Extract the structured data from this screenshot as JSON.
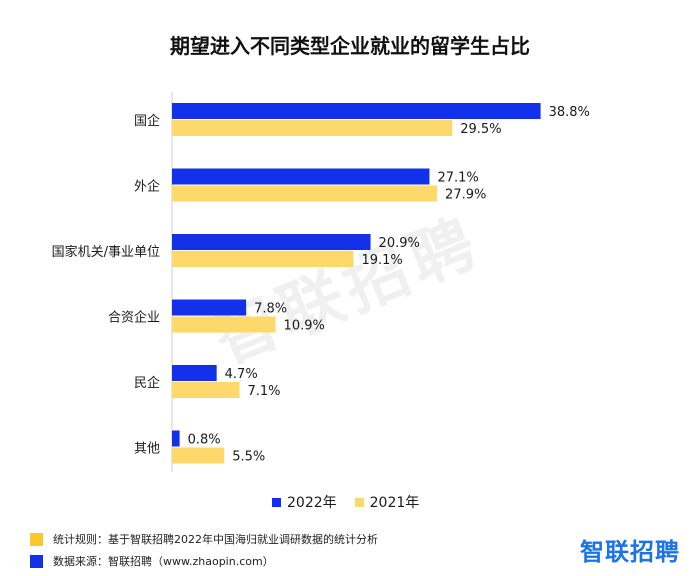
{
  "colors": {
    "series_2022": "#1331e8",
    "series_2021": "#fdd86a",
    "footer_yellow": "#f7c92e",
    "footer_blue": "#1331e8",
    "brand": "#1a73e8"
  },
  "watermark": "智联招聘",
  "legend": {
    "series_2022": "2022年",
    "series_2021": "2021年",
    "placement": "bottom-center"
  },
  "footer": {
    "rule": "统计规则：基于智联招聘2022年中国海归就业调研数据的统计分析",
    "source": "数据来源：智联招聘（www.zhaopin.com）"
  },
  "brand": "智联招聘",
  "chart_data": {
    "type": "bar",
    "orientation": "horizontal",
    "title": "期望进入不同类型企业就业的留学生占比",
    "categories": [
      "国企",
      "外企",
      "国家机关/事业单位",
      "合资企业",
      "民企",
      "其他"
    ],
    "series": [
      {
        "name": "2022年",
        "values": [
          38.8,
          27.1,
          20.9,
          7.8,
          4.7,
          0.8
        ],
        "labels": [
          "38.8%",
          "27.1%",
          "20.9%",
          "7.8%",
          "4.7%",
          "0.8%"
        ]
      },
      {
        "name": "2021年",
        "values": [
          29.5,
          27.9,
          19.1,
          10.9,
          7.1,
          5.5
        ],
        "labels": [
          "29.5%",
          "27.9%",
          "19.1%",
          "10.9%",
          "7.1%",
          "5.5%"
        ]
      }
    ],
    "xlim": [
      0,
      40
    ],
    "grid": false
  }
}
